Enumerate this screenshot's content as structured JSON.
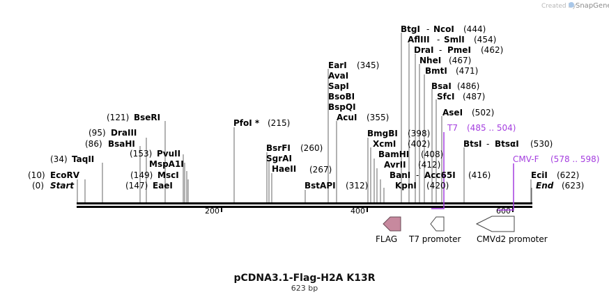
{
  "watermark": {
    "prefix": "Created by",
    "brand": "SnapGene"
  },
  "map": {
    "title": "pCDNA3.1-Flag-H2A K13R",
    "length": "623 bp"
  },
  "ticks": [
    "200",
    "400",
    "600"
  ],
  "sites": {
    "ecorv": {
      "name": "EcoRV",
      "pos": "(10)"
    },
    "start": {
      "name": "Start",
      "pos": "(0)"
    },
    "taqii": {
      "name": "TaqII",
      "pos": "(34)"
    },
    "bsahi": {
      "name": "BsaHI",
      "pos": "(86)"
    },
    "draiii": {
      "name": "DraIII",
      "pos": "(95)"
    },
    "bseri": {
      "name": "BseRI",
      "pos": "(121)"
    },
    "pvuii": {
      "name": "PvuII",
      "pos": "(153)"
    },
    "mspa1i": {
      "name": "MspA1I",
      "pos": ""
    },
    "msci": {
      "name": "MscI",
      "pos": "(149)"
    },
    "eaei": {
      "name": "EaeI",
      "pos": "(147)"
    },
    "pfoi": {
      "name": "PfoI *",
      "pos": "(215)"
    },
    "bsrfi": {
      "name": "BsrFI",
      "pos": "(260)"
    },
    "sgrai": {
      "name": "SgrAI",
      "pos": ""
    },
    "haeii": {
      "name": "HaeII",
      "pos": "(267)"
    },
    "eari": {
      "name": "EarI",
      "pos": "(345)"
    },
    "avai": {
      "name": "AvaI",
      "pos": ""
    },
    "sapi": {
      "name": "SapI",
      "pos": ""
    },
    "bsobi": {
      "name": "BsoBI",
      "pos": ""
    },
    "bspqi": {
      "name": "BspQI",
      "pos": ""
    },
    "acui": {
      "name": "AcuI",
      "pos": "(355)"
    },
    "bstapi": {
      "name": "BstAPI",
      "pos": "(312)"
    },
    "bmgbi": {
      "name": "BmgBI",
      "pos": "(398)"
    },
    "xcmi": {
      "name": "XcmI",
      "pos": "(402)"
    },
    "bamhi": {
      "name": "BamHI",
      "pos": ""
    },
    "avrii": {
      "name": "AvrII",
      "pos": "(412)"
    },
    "bani": {
      "name": "BanI",
      "pos": ""
    },
    "acc65i": {
      "name": "Acc65I",
      "pos": "(416)"
    },
    "kpni": {
      "name": "KpnI",
      "pos": "(420)"
    },
    "pos408": "(408)",
    "btgi": {
      "name": "BtgI",
      "pos": ""
    },
    "ncoi": {
      "name": "NcoI",
      "pos": "(444)"
    },
    "aflIII": {
      "name": "AflIII",
      "pos": ""
    },
    "smli": {
      "name": "SmlI",
      "pos": "(454)"
    },
    "drai": {
      "name": "DraI",
      "pos": ""
    },
    "pmei": {
      "name": "PmeI",
      "pos": "(462)"
    },
    "nhei": {
      "name": "NheI",
      "pos": "(467)"
    },
    "bmti": {
      "name": "BmtI",
      "pos": "(471)"
    },
    "bsai": {
      "name": "BsaI",
      "pos": "(486)"
    },
    "sfci": {
      "name": "SfcI",
      "pos": "(487)"
    },
    "asei": {
      "name": "AseI",
      "pos": "(502)"
    },
    "btsi": {
      "name": "BtsI",
      "pos": ""
    },
    "btsai": {
      "name": "BtsαI",
      "pos": "(530)"
    },
    "ecii": {
      "name": "EciI",
      "pos": "(622)"
    },
    "end": {
      "name": "End",
      "pos": "(623)"
    }
  },
  "primers": {
    "t7": {
      "name": "T7",
      "range": "(485 .. 504)"
    },
    "cmvf": {
      "name": "CMV-F",
      "range": "(578 .. 598)"
    }
  },
  "features": {
    "flag": "FLAG",
    "t7_promoter": "T7 promoter",
    "cmvd2_promoter": "CMVd2 promoter"
  },
  "colors": {
    "primer": "#a43ddf",
    "flag_fill": "#c7899e",
    "arrow_fill": "#ffffff",
    "backbone": "#000000"
  }
}
